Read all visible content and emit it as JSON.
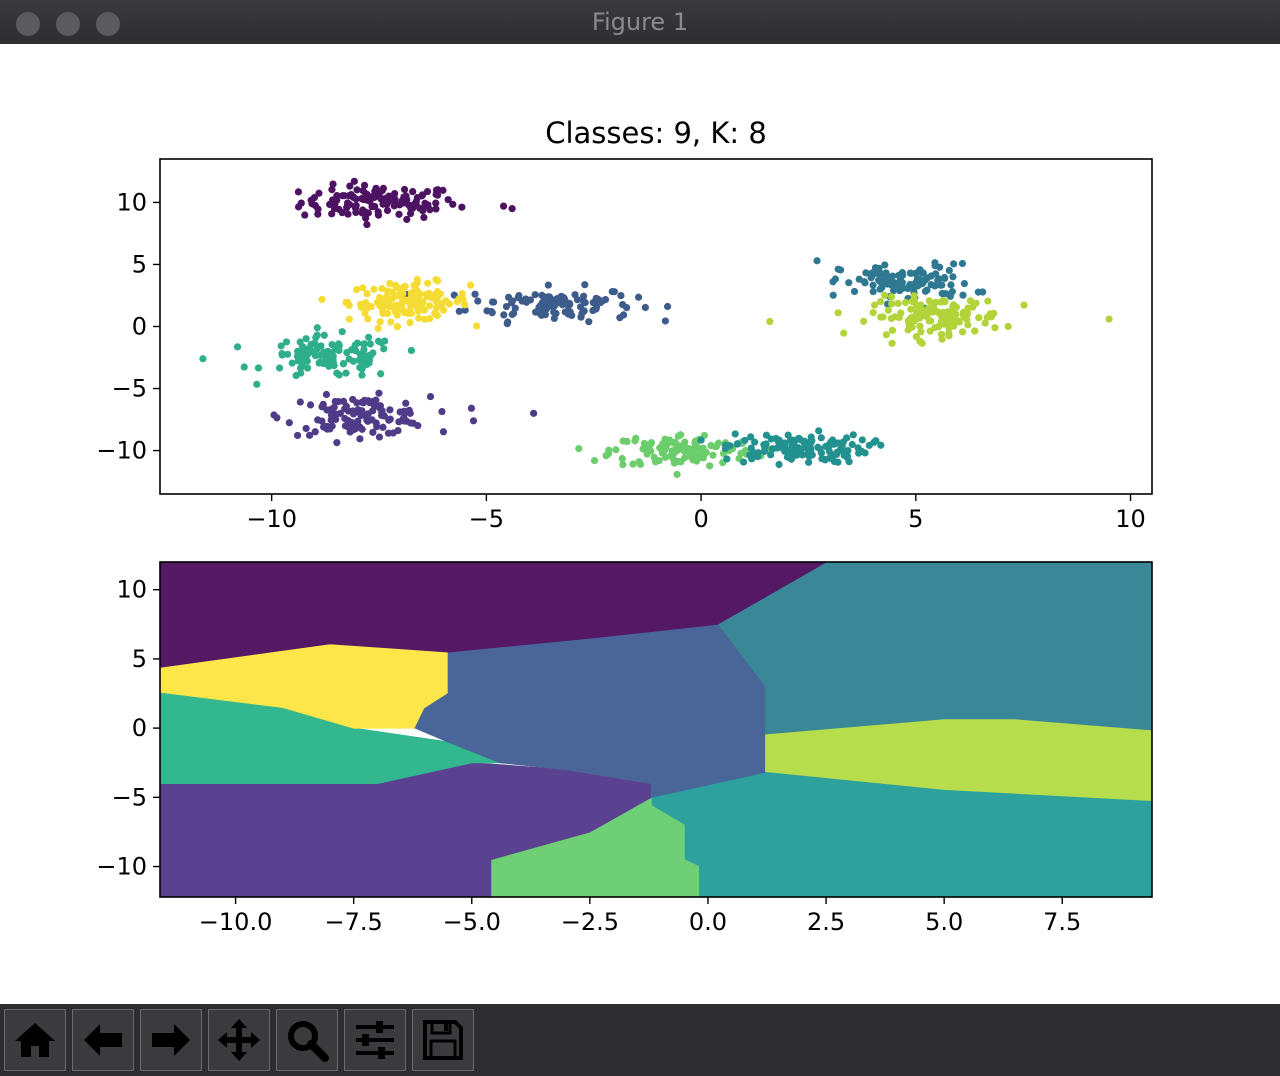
{
  "window": {
    "title": "Figure 1"
  },
  "toolbar": {
    "buttons": [
      {
        "name": "home-button",
        "icon": "home-icon"
      },
      {
        "name": "back-button",
        "icon": "arrow-left-icon"
      },
      {
        "name": "forward-button",
        "icon": "arrow-right-icon"
      },
      {
        "name": "pan-button",
        "icon": "move-icon"
      },
      {
        "name": "zoom-button",
        "icon": "magnifier-icon"
      },
      {
        "name": "configure-button",
        "icon": "sliders-icon"
      },
      {
        "name": "save-button",
        "icon": "floppy-disk-icon"
      }
    ]
  },
  "chart_data": [
    {
      "type": "scatter",
      "title": "Classes: 9, K: 8",
      "xlim": [
        -12.6,
        10.5
      ],
      "ylim": [
        -13.5,
        13.5
      ],
      "xticks": [
        -10,
        -5,
        0,
        5,
        10
      ],
      "xtick_labels": [
        "−10",
        "−5",
        "0",
        "5",
        "10"
      ],
      "yticks": [
        10,
        5,
        0,
        -5,
        -10
      ],
      "ytick_labels": [
        "10",
        "5",
        "0",
        "−5",
        "−10"
      ],
      "grid": false,
      "clusters": [
        {
          "color": "#4d1262",
          "center": [
            -7.5,
            10
          ],
          "spread": [
            1.3,
            0.8
          ],
          "n": 120
        },
        {
          "color": "#3e5c8b",
          "center": [
            -3.5,
            1.8
          ],
          "spread": [
            1.4,
            0.8
          ],
          "n": 110
        },
        {
          "color": "#f5dc35",
          "center": [
            -6.8,
            2
          ],
          "spread": [
            1.0,
            0.9
          ],
          "n": 130
        },
        {
          "color": "#2fae8c",
          "center": [
            -8.6,
            -2.5
          ],
          "spread": [
            1.1,
            1.0
          ],
          "n": 110
        },
        {
          "color": "#4f3b88",
          "center": [
            -8.0,
            -7.2
          ],
          "spread": [
            1.2,
            0.9
          ],
          "n": 120
        },
        {
          "color": "#6bcd6b",
          "center": [
            -0.4,
            -10
          ],
          "spread": [
            1.2,
            0.8
          ],
          "n": 120
        },
        {
          "color": "#23918f",
          "center": [
            2.2,
            -9.8
          ],
          "spread": [
            1.2,
            0.7
          ],
          "n": 120
        },
        {
          "color": "#2f7891",
          "center": [
            4.8,
            3.5
          ],
          "spread": [
            1.1,
            0.9
          ],
          "n": 110
        },
        {
          "color": "#b2d43a",
          "center": [
            5.5,
            0.8
          ],
          "spread": [
            1.1,
            0.9
          ],
          "n": 130
        }
      ],
      "outliers": [
        {
          "x": -11.6,
          "y": -2.6,
          "color": "#2fae8c"
        },
        {
          "x": -5.3,
          "y": -7.6,
          "color": "#4f3b88"
        },
        {
          "x": -3.9,
          "y": -7.0,
          "color": "#4f3b88"
        },
        {
          "x": -4.6,
          "y": 9.7,
          "color": "#4d1262"
        },
        {
          "x": -4.4,
          "y": 9.5,
          "color": "#4d1262"
        },
        {
          "x": 1.6,
          "y": 0.4,
          "color": "#b2d43a"
        },
        {
          "x": 9.5,
          "y": 0.6,
          "color": "#b2d43a"
        },
        {
          "x": 2.7,
          "y": 5.3,
          "color": "#2f7891"
        }
      ]
    },
    {
      "type": "heatmap",
      "title": "",
      "xlim": [
        -11.6,
        9.4
      ],
      "ylim": [
        -12.2,
        12
      ],
      "xticks": [
        -10,
        -7.5,
        -5,
        -2.5,
        0,
        2.5,
        5,
        7.5
      ],
      "xtick_labels": [
        "−10.0",
        "−7.5",
        "−5.0",
        "−2.5",
        "0.0",
        "2.5",
        "5.0",
        "7.5"
      ],
      "yticks": [
        10,
        5,
        0,
        -5,
        -10
      ],
      "ytick_labels": [
        "10",
        "5",
        "0",
        "−5",
        "−10"
      ],
      "regions": [
        {
          "color": "#3a8798",
          "polygon": [
            [
              2.5,
              12
            ],
            [
              9.4,
              12
            ],
            [
              9.4,
              -0.2
            ],
            [
              6.5,
              0.6
            ],
            [
              5,
              0.6
            ],
            [
              1.2,
              -0.5
            ],
            [
              1.2,
              3
            ],
            [
              0.2,
              7.5
            ]
          ]
        },
        {
          "color": "#b6dd4b",
          "polygon": [
            [
              1.2,
              -0.5
            ],
            [
              5,
              0.6
            ],
            [
              6.5,
              0.6
            ],
            [
              9.4,
              -0.2
            ],
            [
              9.4,
              -5.3
            ],
            [
              5,
              -4.5
            ],
            [
              1.2,
              -3.2
            ]
          ]
        },
        {
          "color": "#2ca19d",
          "polygon": [
            [
              -1.2,
              -5
            ],
            [
              1.2,
              -3.2
            ],
            [
              5,
              -4.5
            ],
            [
              9.4,
              -5.3
            ],
            [
              9.4,
              -12.2
            ],
            [
              -0.2,
              -12.2
            ],
            [
              -0.2,
              -10
            ],
            [
              -0.5,
              -9.5
            ],
            [
              -0.5,
              -7
            ],
            [
              -1.2,
              -5.6
            ]
          ]
        },
        {
          "color": "#6ecf76",
          "polygon": [
            [
              -4.6,
              -12.2
            ],
            [
              -0.2,
              -12.2
            ],
            [
              -0.2,
              -10
            ],
            [
              -0.5,
              -9.5
            ],
            [
              -0.5,
              -7
            ],
            [
              -1.2,
              -5.6
            ],
            [
              -1.2,
              -5
            ],
            [
              -2.5,
              -7.5
            ],
            [
              -4.6,
              -9.5
            ]
          ]
        },
        {
          "color": "#5a4290",
          "polygon": [
            [
              -11.6,
              -12.2
            ],
            [
              -4.6,
              -12.2
            ],
            [
              -4.6,
              -9.5
            ],
            [
              -2.5,
              -7.5
            ],
            [
              -1.2,
              -5
            ],
            [
              -1.2,
              -4
            ],
            [
              -3,
              -3
            ],
            [
              -5,
              -2.5
            ],
            [
              -7,
              -4
            ],
            [
              -11.6,
              -4
            ]
          ]
        },
        {
          "color": "#33b78f",
          "polygon": [
            [
              -11.6,
              -4
            ],
            [
              -7,
              -4
            ],
            [
              -5,
              -2.5
            ],
            [
              -4.4,
              -2.5
            ],
            [
              -5.5,
              -1
            ],
            [
              -7.5,
              0
            ],
            [
              -9,
              1.5
            ],
            [
              -11.6,
              2.6
            ]
          ]
        },
        {
          "color": "#fde649",
          "polygon": [
            [
              -11.6,
              2.6
            ],
            [
              -9,
              1.5
            ],
            [
              -7.5,
              0
            ],
            [
              -6.2,
              0
            ],
            [
              -6,
              1.4
            ],
            [
              -5.5,
              2.5
            ],
            [
              -5.5,
              5.5
            ],
            [
              -8,
              6.1
            ],
            [
              -11.6,
              4.4
            ]
          ]
        },
        {
          "color": "#4a6698",
          "polygon": [
            [
              -6.2,
              0
            ],
            [
              -5.5,
              -1
            ],
            [
              -4.4,
              -2.5
            ],
            [
              -3,
              -3
            ],
            [
              -1.2,
              -4
            ],
            [
              -1.2,
              -5
            ],
            [
              1.2,
              -3.2
            ],
            [
              1.2,
              3
            ],
            [
              0.2,
              7.5
            ],
            [
              -2.5,
              6.5
            ],
            [
              -5.5,
              5.5
            ],
            [
              -5.5,
              2.5
            ],
            [
              -6,
              1.4
            ]
          ]
        },
        {
          "color": "#541865",
          "polygon": [
            [
              -11.6,
              12
            ],
            [
              2.5,
              12
            ],
            [
              0.2,
              7.5
            ],
            [
              -2.5,
              6.5
            ],
            [
              -5.5,
              5.5
            ],
            [
              -8,
              6.1
            ],
            [
              -11.6,
              4.4
            ]
          ]
        }
      ]
    }
  ]
}
